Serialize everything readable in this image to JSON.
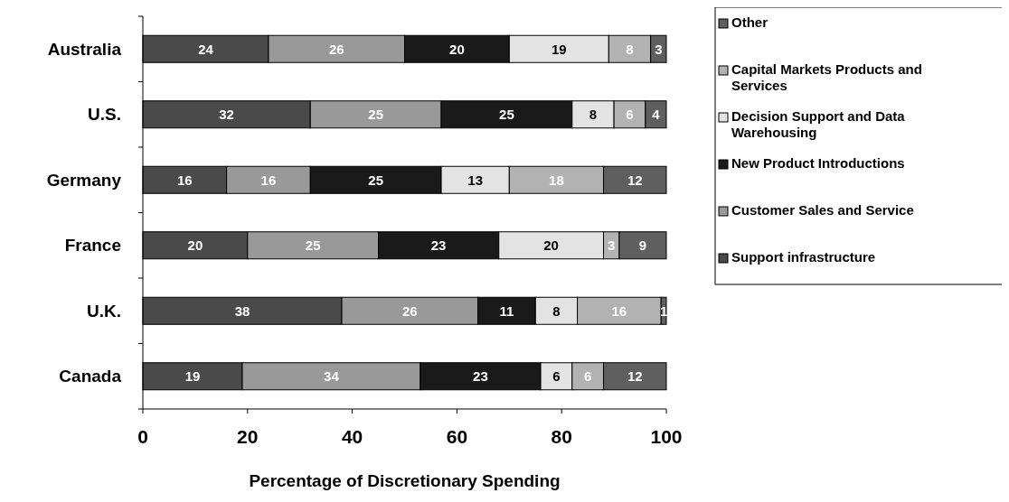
{
  "chart_data": {
    "type": "bar",
    "orientation": "horizontal",
    "stacked": true,
    "xlabel": "Percentage of Discretionary Spending",
    "categories": [
      "Australia",
      "U.S.",
      "Germany",
      "France",
      "U.K.",
      "Canada"
    ],
    "series": [
      {
        "name": "Support infrastructure",
        "color": "#4a4a4a",
        "values": [
          24,
          32,
          16,
          20,
          38,
          19
        ]
      },
      {
        "name": "Customer Sales and Service",
        "color": "#999999",
        "values": [
          26,
          25,
          16,
          25,
          26,
          34
        ]
      },
      {
        "name": "New Product Introductions",
        "color": "#1a1a1a",
        "values": [
          20,
          25,
          25,
          23,
          11,
          23
        ]
      },
      {
        "name": "Decision Support and Data Warehousing",
        "color": "#e3e3e3",
        "values": [
          19,
          8,
          13,
          20,
          8,
          6
        ]
      },
      {
        "name": "Capital Markets Products and Services",
        "color": "#b2b2b2",
        "values": [
          8,
          6,
          18,
          3,
          16,
          6
        ]
      },
      {
        "name": "Other",
        "color": "#5f5f5f",
        "values": [
          3,
          4,
          12,
          9,
          1,
          12
        ]
      }
    ],
    "xlim": [
      0,
      100
    ],
    "xticks": [
      0,
      20,
      40,
      60,
      80,
      100
    ],
    "data_labels": true,
    "legend": "right",
    "grid": false
  }
}
